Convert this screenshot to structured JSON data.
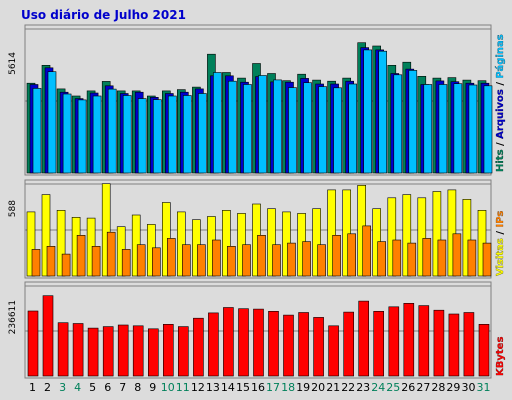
{
  "chart_data": {
    "type": "bar",
    "title": "Uso diário de Julho 2021",
    "categories": [
      "1",
      "2",
      "3",
      "4",
      "5",
      "6",
      "7",
      "8",
      "9",
      "10",
      "11",
      "12",
      "13",
      "14",
      "15",
      "16",
      "17",
      "18",
      "19",
      "20",
      "21",
      "22",
      "23",
      "24",
      "25",
      "26",
      "27",
      "28",
      "29",
      "30",
      "31"
    ],
    "weekend_days": [
      "3",
      "4",
      "10",
      "11",
      "17",
      "18",
      "24",
      "25",
      "31"
    ],
    "panels": [
      {
        "id": "top",
        "max_label": "5614",
        "ylim": [
          0,
          5614
        ],
        "series": [
          {
            "name": "Hits",
            "color": "#00805a",
            "values": [
              3500,
              4200,
              3280,
              3000,
              3200,
              3570,
              3200,
              3200,
              3000,
              3200,
              3250,
              3350,
              4630,
              3920,
              3700,
              4270,
              3880,
              3600,
              3850,
              3620,
              3580,
              3700,
              5080,
              4950,
              4200,
              4320,
              3770,
              3700,
              3720,
              3620,
              3600
            ]
          },
          {
            "name": "Arquivos",
            "color": "#0000cc",
            "values": [
              3450,
              4100,
              3150,
              2900,
              3120,
              3400,
              3100,
              3150,
              2950,
              3100,
              3150,
              3280,
              3790,
              3790,
              3540,
              3760,
              3550,
              3540,
              3690,
              3470,
              3470,
              3580,
              4890,
              4800,
              3880,
              4050,
              3450,
              3590,
              3560,
              3500,
              3500
            ]
          },
          {
            "name": "Páginas",
            "color": "#00bfff",
            "values": [
              3300,
              3950,
              3080,
              2850,
              3000,
              3270,
              3020,
              2900,
              2860,
              3000,
              3020,
              3100,
              3920,
              3580,
              3450,
              3800,
              3630,
              3330,
              3520,
              3370,
              3320,
              3470,
              4800,
              4750,
              3830,
              4000,
              3450,
              3450,
              3480,
              3430,
              3400
            ]
          }
        ]
      },
      {
        "id": "middle",
        "max_label": "588",
        "ylim": [
          0,
          588
        ],
        "series": [
          {
            "name": "Visitas",
            "color": "#ffff00",
            "values": [
              410,
              520,
              420,
              375,
              370,
              590,
              315,
              390,
              330,
              470,
              410,
              360,
              380,
              420,
              400,
              460,
              430,
              410,
              400,
              430,
              550,
              550,
              580,
              430,
              500,
              520,
              500,
              540,
              550,
              490,
              420
            ]
          },
          {
            "name": "IPs",
            "color": "#ff8000",
            "values": [
              170,
              190,
              140,
              260,
              190,
              280,
              170,
              200,
              180,
              240,
              200,
              200,
              230,
              190,
              200,
              260,
              200,
              210,
              220,
              200,
              260,
              270,
              320,
              220,
              230,
              210,
              240,
              230,
              270,
              230,
              210
            ]
          }
        ]
      },
      {
        "id": "bottom",
        "max_label": "236611",
        "ylim": [
          0,
          236611
        ],
        "series": [
          {
            "name": "KBytes",
            "color": "#ff0000",
            "values": [
              171000,
              211000,
              140000,
              138000,
              126000,
              130000,
              134000,
              132000,
              124000,
              136000,
              130000,
              152000,
              166000,
              180000,
              177000,
              176000,
              170000,
              160000,
              167000,
              154000,
              132000,
              168000,
              197000,
              170000,
              182000,
              191000,
              185000,
              173000,
              163000,
              167000,
              136000
            ]
          }
        ]
      }
    ],
    "colors": {
      "background": "#dcdcdc",
      "border": "#808080",
      "title": "#0000cc",
      "weekday_label": "#000000",
      "weekend_label": "#00805a",
      "separator": "#000000"
    }
  }
}
